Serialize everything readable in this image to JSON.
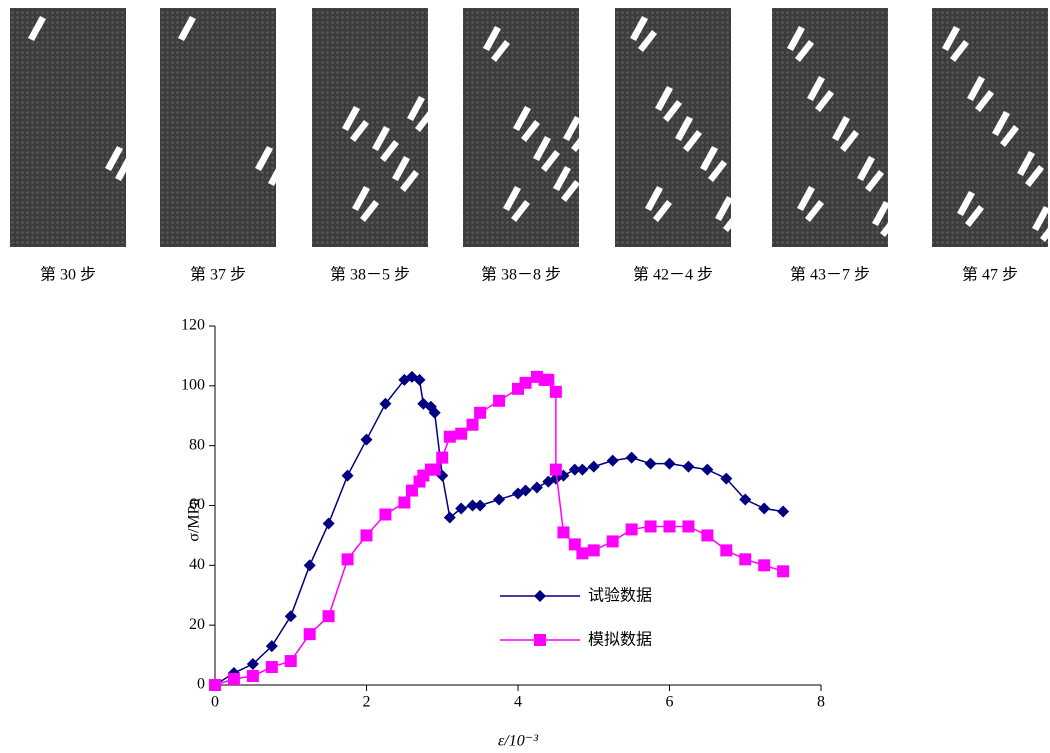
{
  "panels": [
    "第 30 步",
    "第 37 步",
    "第 38－5 步",
    "第 38－8 步",
    "第 42－4 步",
    "第 43－7 步",
    "第 47 步"
  ],
  "chart_data": {
    "type": "line",
    "x_label": "ε/10⁻³",
    "y_label": "σ/MPa",
    "xlim": [
      0,
      8
    ],
    "xticks": [
      0,
      2,
      4,
      6,
      8
    ],
    "ylim": [
      0,
      120
    ],
    "yticks": [
      0,
      20,
      40,
      60,
      80,
      100,
      120
    ],
    "grid": false,
    "series": [
      {
        "name": "试验数据",
        "color": "#000080",
        "marker": "diamond",
        "x": [
          0,
          0.25,
          0.5,
          0.75,
          1,
          1.25,
          1.5,
          1.75,
          2,
          2.25,
          2.5,
          2.6,
          2.7,
          2.75,
          2.85,
          2.9,
          3,
          3.1,
          3.25,
          3.4,
          3.5,
          3.75,
          4,
          4.1,
          4.25,
          4.4,
          4.5,
          4.6,
          4.75,
          4.85,
          5,
          5.25,
          5.5,
          5.75,
          6,
          6.25,
          6.5,
          6.75,
          7,
          7.25,
          7.5
        ],
        "values": [
          0,
          4,
          7,
          13,
          23,
          40,
          54,
          70,
          82,
          94,
          102,
          103,
          102,
          94,
          93,
          91,
          70,
          56,
          59,
          60,
          60,
          62,
          64,
          65,
          66,
          68,
          69,
          70,
          72,
          72,
          73,
          75,
          76,
          74,
          74,
          73,
          72,
          69,
          62,
          59,
          58
        ]
      },
      {
        "name": "模拟数据",
        "color": "#ff00ff",
        "marker": "square",
        "x": [
          0,
          0.25,
          0.5,
          0.75,
          1,
          1.25,
          1.5,
          1.75,
          2,
          2.25,
          2.5,
          2.6,
          2.7,
          2.75,
          2.85,
          2.9,
          3,
          3.1,
          3.25,
          3.4,
          3.5,
          3.75,
          4,
          4.1,
          4.25,
          4.35,
          4.4,
          4.5,
          4.5,
          4.6,
          4.75,
          4.85,
          5,
          5.25,
          5.5,
          5.75,
          6,
          6.25,
          6.5,
          6.75,
          7,
          7.25,
          7.5
        ],
        "values": [
          0,
          2,
          3,
          6,
          8,
          17,
          23,
          42,
          50,
          57,
          61,
          65,
          68,
          70,
          72,
          72,
          76,
          83,
          84,
          87,
          91,
          95,
          99,
          101,
          103,
          102,
          102,
          98,
          72,
          51,
          47,
          44,
          45,
          48,
          52,
          53,
          53,
          53,
          50,
          45,
          42,
          40,
          38
        ]
      }
    ]
  }
}
